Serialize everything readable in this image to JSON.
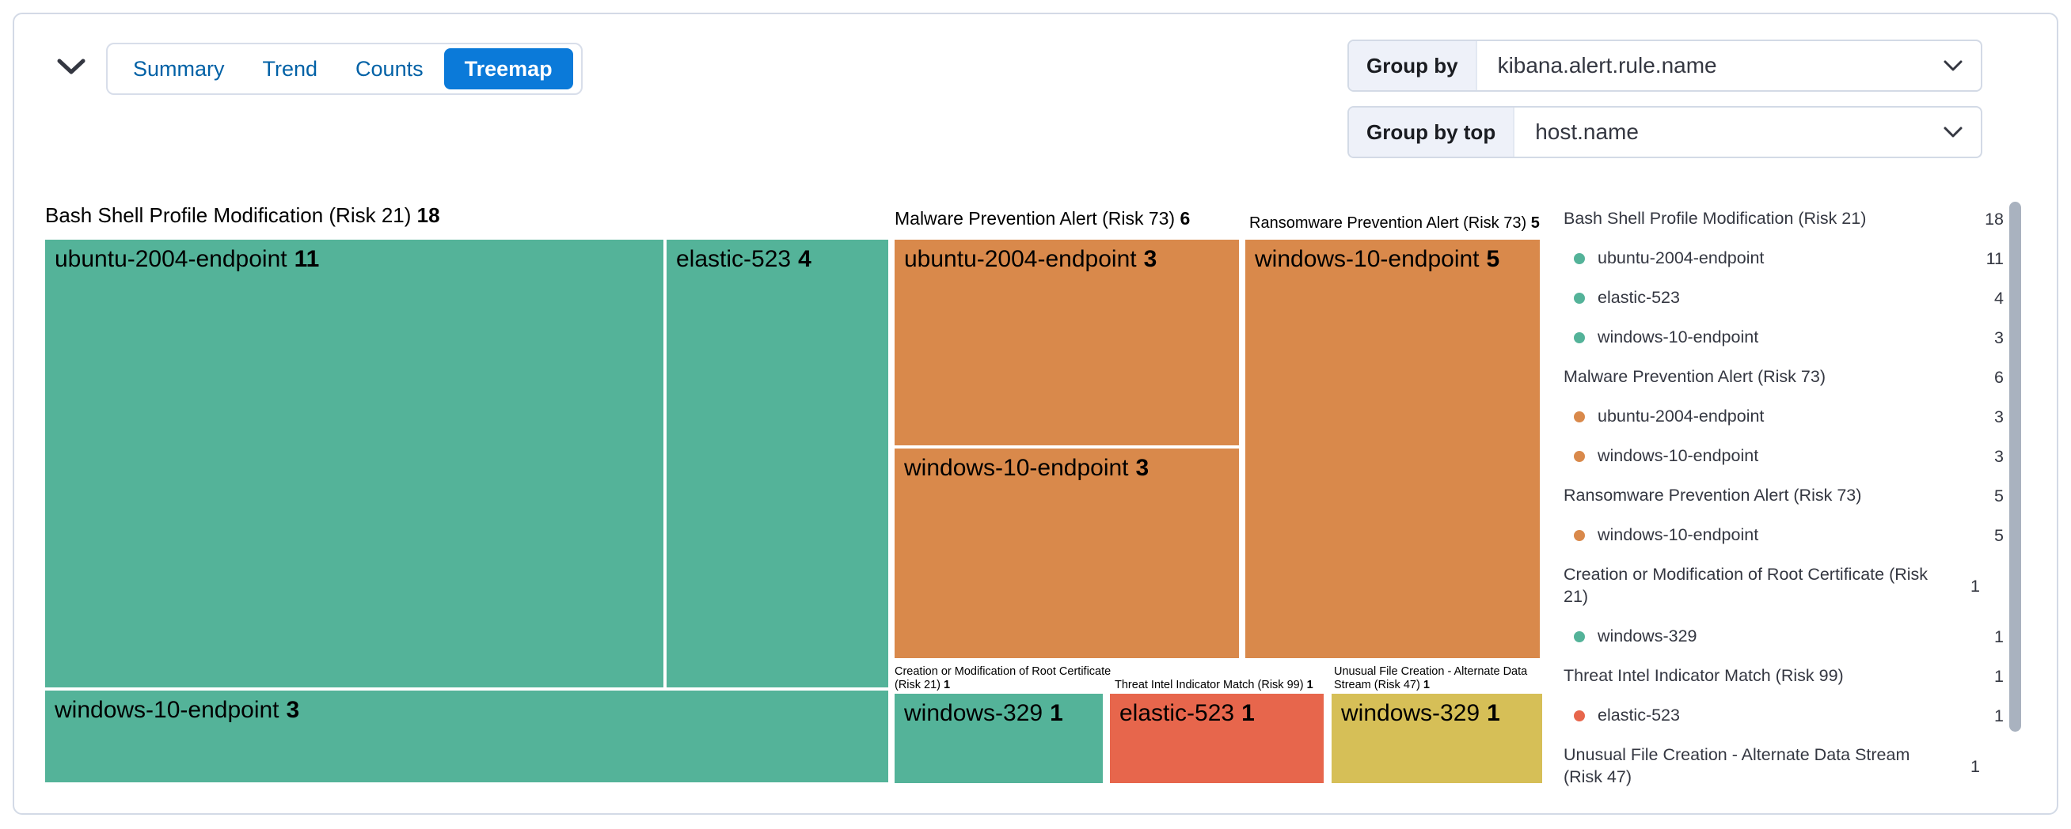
{
  "header": {
    "collapse_button": {
      "icon": "chevron-down-icon"
    },
    "tabs": [
      {
        "label": "Summary",
        "selected": false
      },
      {
        "label": "Trend",
        "selected": false
      },
      {
        "label": "Counts",
        "selected": false
      },
      {
        "label": "Treemap",
        "selected": true
      }
    ],
    "controls": [
      {
        "label": "Group by",
        "value": "kibana.alert.rule.name",
        "icon": "chevron-down-icon"
      },
      {
        "label": "Group by top",
        "value": "host.name",
        "icon": "chevron-down-icon"
      }
    ]
  },
  "colors": {
    "green": "#54B399",
    "orange": "#D9894B",
    "red": "#E7664C",
    "yellow": "#D6BF57",
    "selected_tab_bg": "#0B7AD9",
    "link_blue": "#0061A6",
    "legend_text": "#343741",
    "scrollbar_thumb": "#A9B2BF"
  },
  "treemap": {
    "groups": [
      {
        "title": "Bash Shell Profile Modification (Risk 21)",
        "total": "18",
        "tiles": [
          {
            "name": "ubuntu-2004-endpoint",
            "value": "11",
            "color": "#54B399"
          },
          {
            "name": "elastic-523",
            "value": "4",
            "color": "#54B399"
          },
          {
            "name": "windows-10-endpoint",
            "value": "3",
            "color": "#54B399"
          }
        ]
      },
      {
        "title": "Malware Prevention Alert (Risk 73)",
        "total": "6",
        "tiles": [
          {
            "name": "ubuntu-2004-endpoint",
            "value": "3",
            "color": "#D9894B"
          },
          {
            "name": "windows-10-endpoint",
            "value": "3",
            "color": "#D9894B"
          }
        ]
      },
      {
        "title": "Ransomware Prevention Alert (Risk 73)",
        "total": "5",
        "tiles": [
          {
            "name": "windows-10-endpoint",
            "value": "5",
            "color": "#D9894B"
          }
        ]
      },
      {
        "title": "Creation or Modification of Root Certificate (Risk 21)",
        "total": "1",
        "tiles": [
          {
            "name": "windows-329",
            "value": "1",
            "color": "#54B399"
          }
        ]
      },
      {
        "title": "Threat Intel Indicator Match (Risk 99)",
        "total": "1",
        "tiles": [
          {
            "name": "elastic-523",
            "value": "1",
            "color": "#E7664C"
          }
        ]
      },
      {
        "title": "Unusual File Creation - Alternate Data Stream (Risk 47)",
        "total": "1",
        "tiles": [
          {
            "name": "windows-329",
            "value": "1",
            "color": "#D6BF57"
          }
        ]
      }
    ]
  },
  "legend": {
    "rows": [
      {
        "type": "group",
        "label": "Bash Shell Profile Modification (Risk 21)",
        "value": "18"
      },
      {
        "type": "item",
        "dot": "#54B399",
        "label": "ubuntu-2004-endpoint",
        "value": "11"
      },
      {
        "type": "item",
        "dot": "#54B399",
        "label": "elastic-523",
        "value": "4"
      },
      {
        "type": "item",
        "dot": "#54B399",
        "label": "windows-10-endpoint",
        "value": "3"
      },
      {
        "type": "group",
        "label": "Malware Prevention Alert (Risk 73)",
        "value": "6"
      },
      {
        "type": "item",
        "dot": "#D9894B",
        "label": "ubuntu-2004-endpoint",
        "value": "3"
      },
      {
        "type": "item",
        "dot": "#D9894B",
        "label": "windows-10-endpoint",
        "value": "3"
      },
      {
        "type": "group",
        "label": "Ransomware Prevention Alert (Risk 73)",
        "value": "5"
      },
      {
        "type": "item",
        "dot": "#D9894B",
        "label": "windows-10-endpoint",
        "value": "5"
      },
      {
        "type": "group",
        "label": "Creation or Modification of Root Certificate (Risk 21)",
        "value": "1"
      },
      {
        "type": "item",
        "dot": "#54B399",
        "label": "windows-329",
        "value": "1"
      },
      {
        "type": "group",
        "label": "Threat Intel Indicator Match (Risk 99)",
        "value": "1"
      },
      {
        "type": "item",
        "dot": "#E7664C",
        "label": "elastic-523",
        "value": "1"
      },
      {
        "type": "group",
        "label": "Unusual File Creation - Alternate Data Stream (Risk 47)",
        "value": "1"
      }
    ]
  },
  "chart_data": {
    "type": "treemap",
    "title": "Alerts grouped by kibana.alert.rule.name, split by host.name",
    "series": [
      {
        "name": "Bash Shell Profile Modification (Risk 21)",
        "total": 18,
        "color": "#54B399",
        "children": [
          {
            "name": "ubuntu-2004-endpoint",
            "value": 11
          },
          {
            "name": "elastic-523",
            "value": 4
          },
          {
            "name": "windows-10-endpoint",
            "value": 3
          }
        ]
      },
      {
        "name": "Malware Prevention Alert (Risk 73)",
        "total": 6,
        "color": "#D9894B",
        "children": [
          {
            "name": "ubuntu-2004-endpoint",
            "value": 3
          },
          {
            "name": "windows-10-endpoint",
            "value": 3
          }
        ]
      },
      {
        "name": "Ransomware Prevention Alert (Risk 73)",
        "total": 5,
        "color": "#D9894B",
        "children": [
          {
            "name": "windows-10-endpoint",
            "value": 5
          }
        ]
      },
      {
        "name": "Creation or Modification of Root Certificate (Risk 21)",
        "total": 1,
        "color": "#54B399",
        "children": [
          {
            "name": "windows-329",
            "value": 1
          }
        ]
      },
      {
        "name": "Threat Intel Indicator Match (Risk 99)",
        "total": 1,
        "color": "#E7664C",
        "children": [
          {
            "name": "elastic-523",
            "value": 1
          }
        ]
      },
      {
        "name": "Unusual File Creation - Alternate Data Stream (Risk 47)",
        "total": 1,
        "color": "#D6BF57",
        "children": [
          {
            "name": "windows-329",
            "value": 1
          }
        ]
      }
    ],
    "legend_position": "right"
  }
}
